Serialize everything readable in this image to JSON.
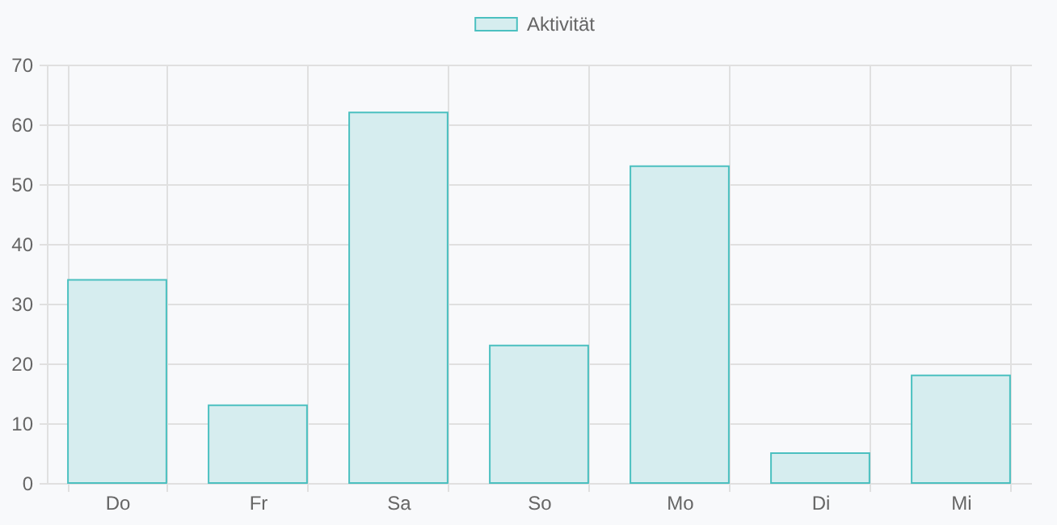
{
  "chart_data": {
    "type": "bar",
    "categories": [
      "Do",
      "Fr",
      "Sa",
      "So",
      "Mo",
      "Di",
      "Mi"
    ],
    "series": [
      {
        "name": "Aktivität",
        "color": "#d6edef",
        "values": [
          34,
          13,
          62,
          23,
          53,
          5,
          18
        ]
      }
    ],
    "ylim": [
      0,
      70
    ],
    "yticks": [
      0,
      10,
      20,
      30,
      40,
      50,
      60,
      70
    ],
    "grid": true,
    "legend": "top"
  }
}
